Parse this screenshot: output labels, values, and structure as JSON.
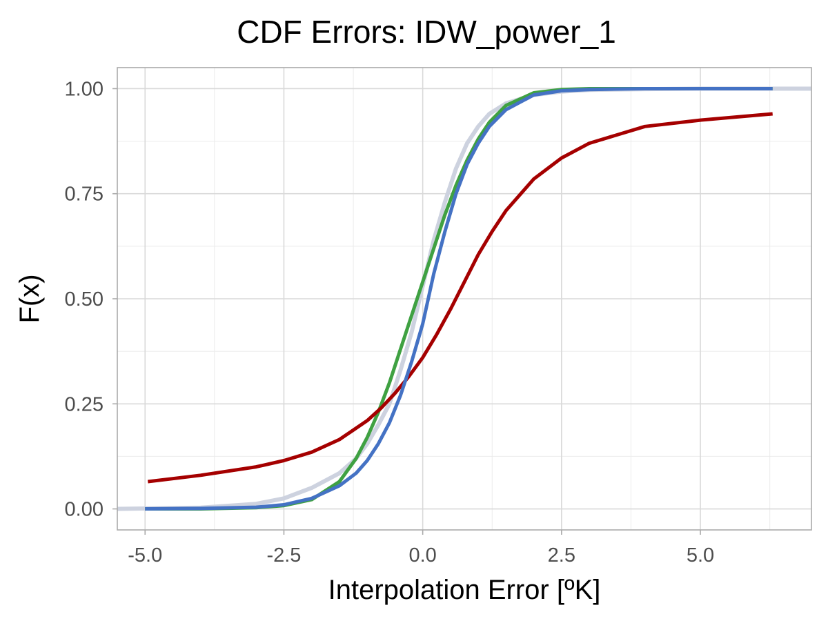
{
  "chart_data": {
    "type": "line",
    "title": "CDF Errors: IDW_power_1",
    "xlabel": "Interpolation Error [ºK]",
    "ylabel": "F(x)",
    "xlim": [
      -5.5,
      7.0
    ],
    "ylim": [
      -0.05,
      1.05
    ],
    "x_ticks": [
      -5.0,
      -2.5,
      0.0,
      2.5,
      5.0
    ],
    "x_tick_labels": [
      "-5.0",
      "-2.5",
      "0.0",
      "2.5",
      "5.0"
    ],
    "y_ticks": [
      0.0,
      0.25,
      0.5,
      0.75,
      1.0
    ],
    "y_tick_labels": [
      "0.00",
      "0.25",
      "0.50",
      "0.75",
      "1.00"
    ],
    "grid": true,
    "legend": "none",
    "series": [
      {
        "color": "#cdd2df",
        "x": [
          -5.5,
          -4.0,
          -3.0,
          -2.5,
          -2.0,
          -1.5,
          -1.2,
          -1.0,
          -0.8,
          -0.6,
          -0.4,
          -0.2,
          0.0,
          0.2,
          0.4,
          0.6,
          0.8,
          1.0,
          1.2,
          1.5,
          2.0,
          2.5,
          3.0,
          4.0,
          5.0,
          6.3,
          7.0
        ],
        "y": [
          0.0,
          0.003,
          0.012,
          0.025,
          0.05,
          0.085,
          0.12,
          0.155,
          0.2,
          0.25,
          0.33,
          0.42,
          0.53,
          0.64,
          0.73,
          0.81,
          0.87,
          0.91,
          0.94,
          0.965,
          0.985,
          0.993,
          0.997,
          0.999,
          1.0,
          1.0,
          1.0
        ]
      },
      {
        "color": "#3fa142",
        "x": [
          -5.0,
          -4.0,
          -3.0,
          -2.5,
          -2.0,
          -1.5,
          -1.2,
          -1.0,
          -0.8,
          -0.6,
          -0.4,
          -0.2,
          0.0,
          0.2,
          0.4,
          0.6,
          0.8,
          1.0,
          1.2,
          1.5,
          2.0,
          2.5,
          3.0,
          4.0,
          5.0,
          6.3
        ],
        "y": [
          0.0,
          0.0,
          0.003,
          0.008,
          0.022,
          0.065,
          0.12,
          0.17,
          0.23,
          0.3,
          0.38,
          0.46,
          0.54,
          0.62,
          0.7,
          0.77,
          0.83,
          0.88,
          0.92,
          0.96,
          0.99,
          0.998,
          1.0,
          1.0,
          1.0,
          1.0
        ]
      },
      {
        "color": "#a50000",
        "x": [
          -4.95,
          -4.0,
          -3.0,
          -2.5,
          -2.0,
          -1.5,
          -1.0,
          -0.75,
          -0.5,
          -0.25,
          0.0,
          0.25,
          0.5,
          0.75,
          1.0,
          1.25,
          1.5,
          2.0,
          2.5,
          3.0,
          4.0,
          5.0,
          6.3
        ],
        "y": [
          0.065,
          0.08,
          0.1,
          0.115,
          0.135,
          0.165,
          0.21,
          0.24,
          0.275,
          0.315,
          0.36,
          0.415,
          0.475,
          0.54,
          0.605,
          0.66,
          0.71,
          0.785,
          0.835,
          0.87,
          0.91,
          0.925,
          0.94
        ]
      },
      {
        "color": "#4472c4",
        "x": [
          -5.0,
          -4.0,
          -3.0,
          -2.5,
          -2.0,
          -1.5,
          -1.2,
          -1.0,
          -0.8,
          -0.6,
          -0.4,
          -0.2,
          0.0,
          0.2,
          0.4,
          0.6,
          0.8,
          1.0,
          1.2,
          1.5,
          2.0,
          2.5,
          3.0,
          4.0,
          5.0,
          6.3
        ],
        "y": [
          0.0,
          0.001,
          0.004,
          0.01,
          0.025,
          0.055,
          0.085,
          0.115,
          0.155,
          0.205,
          0.27,
          0.35,
          0.44,
          0.56,
          0.66,
          0.75,
          0.82,
          0.87,
          0.91,
          0.95,
          0.985,
          0.995,
          0.998,
          1.0,
          1.0,
          1.0
        ]
      }
    ]
  }
}
